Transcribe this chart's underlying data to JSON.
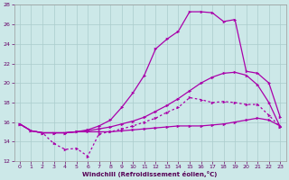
{
  "xlabel": "Windchill (Refroidissement éolien,°C)",
  "bg_color": "#cce8e8",
  "grid_color": "#aacccc",
  "line_color": "#aa00aa",
  "xlim": [
    -0.5,
    23.5
  ],
  "ylim": [
    12,
    28
  ],
  "yticks": [
    12,
    14,
    16,
    18,
    20,
    22,
    24,
    26,
    28
  ],
  "xticks": [
    0,
    1,
    2,
    3,
    4,
    5,
    6,
    7,
    8,
    9,
    10,
    11,
    12,
    13,
    14,
    15,
    16,
    17,
    18,
    19,
    20,
    21,
    22,
    23
  ],
  "curve_top_x": [
    0,
    1,
    2,
    3,
    4,
    5,
    6,
    7,
    8,
    9,
    10,
    11,
    12,
    13,
    14,
    15,
    16,
    17,
    18,
    19,
    20,
    21,
    22,
    23
  ],
  "curve_top_y": [
    15.8,
    15.1,
    14.9,
    14.9,
    14.9,
    15.0,
    15.2,
    15.6,
    16.2,
    17.5,
    19.0,
    20.8,
    23.5,
    24.5,
    25.3,
    27.3,
    27.3,
    27.2,
    26.3,
    26.5,
    21.2,
    21.0,
    20.0,
    16.5
  ],
  "curve_mid_x": [
    0,
    1,
    2,
    3,
    4,
    5,
    6,
    7,
    8,
    9,
    10,
    11,
    12,
    13,
    14,
    15,
    16,
    17,
    18,
    19,
    20,
    21,
    22,
    23
  ],
  "curve_mid_y": [
    15.8,
    15.1,
    14.9,
    14.9,
    14.9,
    15.0,
    15.1,
    15.3,
    15.5,
    15.8,
    16.1,
    16.5,
    17.1,
    17.7,
    18.4,
    19.2,
    20.0,
    20.6,
    21.0,
    21.1,
    20.8,
    19.8,
    18.0,
    15.5
  ],
  "curve_wav_x": [
    0,
    1,
    2,
    3,
    4,
    5,
    6,
    7,
    8,
    9,
    10,
    11,
    12,
    13,
    14,
    15,
    16,
    17,
    18,
    19,
    20,
    21,
    22,
    23
  ],
  "curve_wav_y": [
    15.8,
    15.1,
    14.9,
    13.8,
    13.2,
    13.3,
    12.5,
    14.8,
    15.0,
    15.3,
    15.6,
    16.0,
    16.4,
    17.0,
    17.5,
    18.5,
    18.3,
    18.0,
    18.1,
    18.0,
    17.8,
    17.8,
    16.7,
    15.5
  ],
  "curve_bot_x": [
    0,
    1,
    2,
    3,
    4,
    5,
    6,
    7,
    8,
    9,
    10,
    11,
    12,
    13,
    14,
    15,
    16,
    17,
    18,
    19,
    20,
    21,
    22,
    23
  ],
  "curve_bot_y": [
    15.8,
    15.1,
    14.9,
    14.9,
    14.9,
    15.0,
    15.0,
    15.0,
    15.0,
    15.1,
    15.2,
    15.3,
    15.4,
    15.5,
    15.6,
    15.6,
    15.6,
    15.7,
    15.8,
    16.0,
    16.2,
    16.4,
    16.2,
    15.6
  ]
}
